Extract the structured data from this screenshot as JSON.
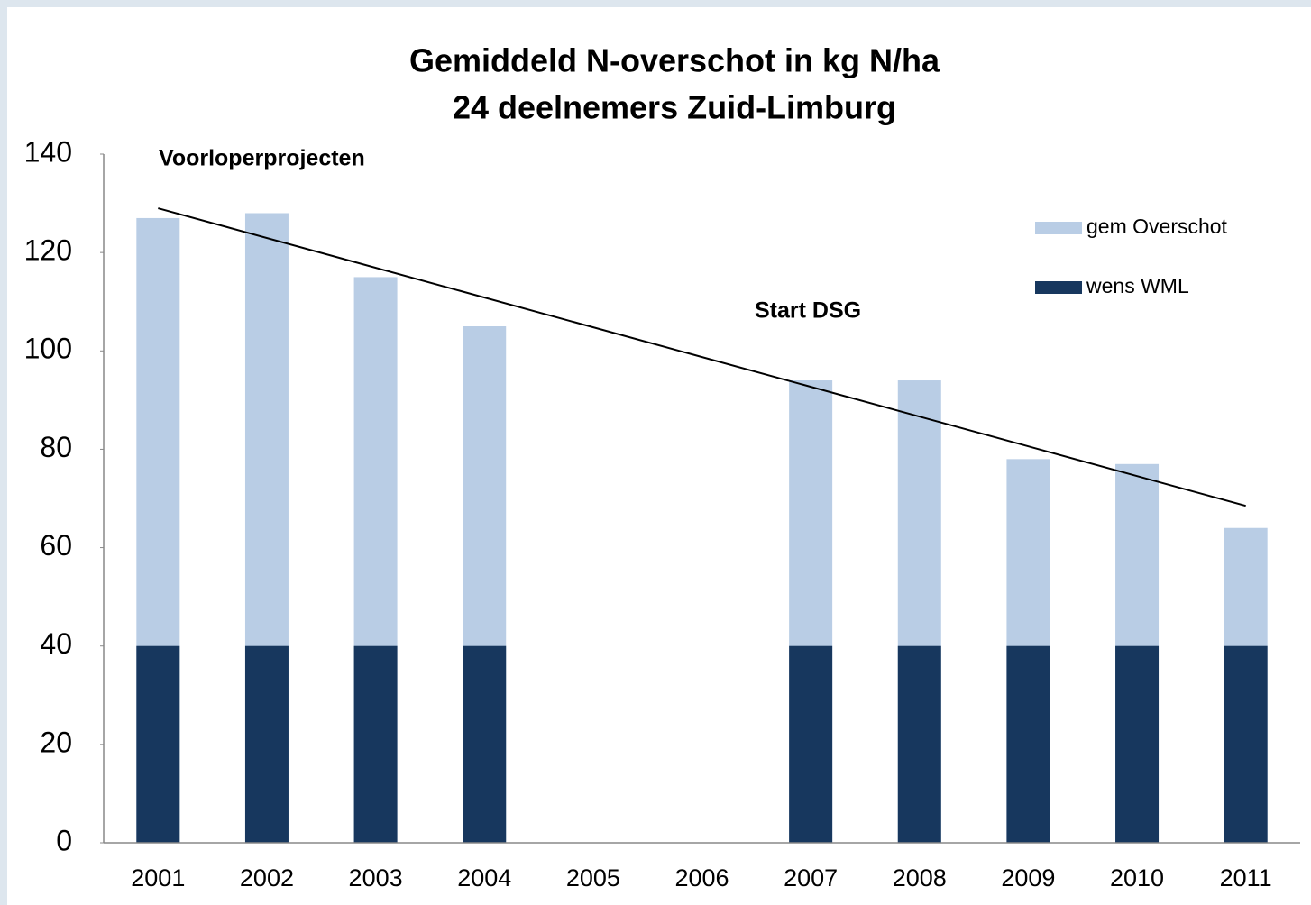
{
  "chart_data": {
    "type": "bar",
    "title": [
      "Gemiddeld N-overschot in kg N/ha",
      "24 deelnemers Zuid-Limburg"
    ],
    "categories": [
      "2001",
      "2002",
      "2003",
      "2004",
      "2005",
      "2006",
      "2007",
      "2008",
      "2009",
      "2010",
      "2011"
    ],
    "series": [
      {
        "name": "gem Overschot",
        "color": "#b9cde5",
        "values": [
          127,
          128,
          115,
          105,
          null,
          null,
          94,
          94,
          78,
          77,
          64
        ]
      },
      {
        "name": "wens WML",
        "color": "#17375e",
        "values": [
          40,
          40,
          40,
          40,
          null,
          null,
          40,
          40,
          40,
          40,
          40
        ]
      }
    ],
    "trendline": {
      "values": [
        129,
        68.5
      ],
      "color": "#000000"
    },
    "annotations": [
      "Voorloperprojecten",
      "Start DSG"
    ],
    "ylim": [
      0,
      140
    ],
    "yticks": [
      0,
      20,
      40,
      60,
      80,
      100,
      120,
      140
    ],
    "grid": false,
    "legend": "top-right"
  }
}
